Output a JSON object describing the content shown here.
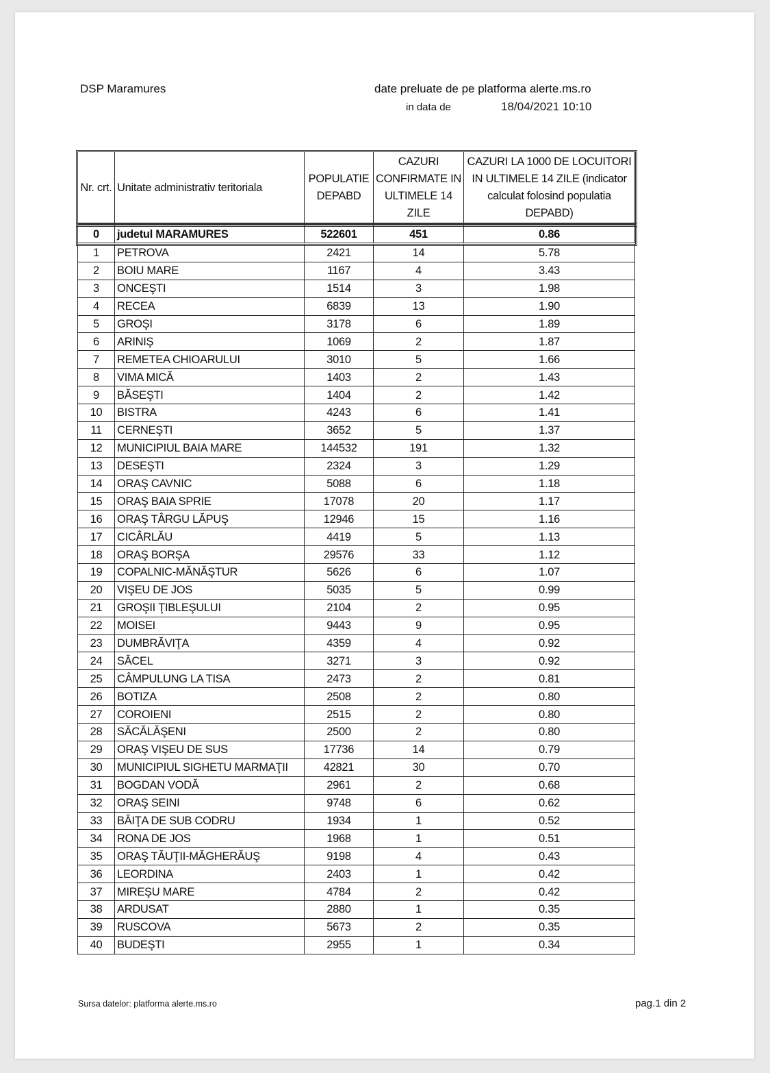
{
  "header": {
    "org": "DSP Maramures",
    "source_line": "date preluate de pe platforma alerte.ms.ro",
    "date_label": "in data de",
    "date_value": "18/04/2021 10:10"
  },
  "table": {
    "columns": [
      "Nr. crt.",
      "Unitate administrativ teritoriala",
      "POPULATIE DEPABD",
      "CAZURI CONFIRMATE IN ULTIMELE 14 ZILE",
      "CAZURI LA 1000 DE LOCUITORI IN ULTIMELE 14 ZILE (indicator calculat folosind populatia DEPABD)"
    ],
    "total": [
      "0",
      "judetul MARAMURES",
      "522601",
      "451",
      "0.86"
    ],
    "rows": [
      [
        "1",
        "PETROVA",
        "2421",
        "14",
        "5.78"
      ],
      [
        "2",
        "BOIU MARE",
        "1167",
        "4",
        "3.43"
      ],
      [
        "3",
        "ONCEŞTI",
        "1514",
        "3",
        "1.98"
      ],
      [
        "4",
        "RECEA",
        "6839",
        "13",
        "1.90"
      ],
      [
        "5",
        "GROŞI",
        "3178",
        "6",
        "1.89"
      ],
      [
        "6",
        "ARINIŞ",
        "1069",
        "2",
        "1.87"
      ],
      [
        "7",
        "REMETEA CHIOARULUI",
        "3010",
        "5",
        "1.66"
      ],
      [
        "8",
        "VIMA MICĂ",
        "1403",
        "2",
        "1.43"
      ],
      [
        "9",
        "BĂSEŞTI",
        "1404",
        "2",
        "1.42"
      ],
      [
        "10",
        "BISTRA",
        "4243",
        "6",
        "1.41"
      ],
      [
        "11",
        "CERNEŞTI",
        "3652",
        "5",
        "1.37"
      ],
      [
        "12",
        "MUNICIPIUL BAIA MARE",
        "144532",
        "191",
        "1.32"
      ],
      [
        "13",
        "DESEŞTI",
        "2324",
        "3",
        "1.29"
      ],
      [
        "14",
        "ORAŞ CAVNIC",
        "5088",
        "6",
        "1.18"
      ],
      [
        "15",
        "ORAŞ BAIA SPRIE",
        "17078",
        "20",
        "1.17"
      ],
      [
        "16",
        "ORAŞ TÂRGU LĂPUŞ",
        "12946",
        "15",
        "1.16"
      ],
      [
        "17",
        "CICÂRLĂU",
        "4419",
        "5",
        "1.13"
      ],
      [
        "18",
        "ORAŞ BORŞA",
        "29576",
        "33",
        "1.12"
      ],
      [
        "19",
        "COPALNIC-MĂNĂŞTUR",
        "5626",
        "6",
        "1.07"
      ],
      [
        "20",
        "VIŞEU DE JOS",
        "5035",
        "5",
        "0.99"
      ],
      [
        "21",
        "GROŞII ŢIBLEŞULUI",
        "2104",
        "2",
        "0.95"
      ],
      [
        "22",
        "MOISEI",
        "9443",
        "9",
        "0.95"
      ],
      [
        "23",
        "DUMBRĂVIŢA",
        "4359",
        "4",
        "0.92"
      ],
      [
        "24",
        "SĂCEL",
        "3271",
        "3",
        "0.92"
      ],
      [
        "25",
        "CÂMPULUNG LA TISA",
        "2473",
        "2",
        "0.81"
      ],
      [
        "26",
        "BOTIZA",
        "2508",
        "2",
        "0.80"
      ],
      [
        "27",
        "COROIENI",
        "2515",
        "2",
        "0.80"
      ],
      [
        "28",
        "SĂCĂLĂŞENI",
        "2500",
        "2",
        "0.80"
      ],
      [
        "29",
        "ORAŞ VIŞEU DE SUS",
        "17736",
        "14",
        "0.79"
      ],
      [
        "30",
        "MUNICIPIUL SIGHETU MARMAŢII",
        "42821",
        "30",
        "0.70"
      ],
      [
        "31",
        "BOGDAN VODĂ",
        "2961",
        "2",
        "0.68"
      ],
      [
        "32",
        "ORAŞ SEINI",
        "9748",
        "6",
        "0.62"
      ],
      [
        "33",
        "BĂIŢA DE SUB CODRU",
        "1934",
        "1",
        "0.52"
      ],
      [
        "34",
        "RONA DE JOS",
        "1968",
        "1",
        "0.51"
      ],
      [
        "35",
        "ORAŞ TĂUŢII-MĂGHERĂUŞ",
        "9198",
        "4",
        "0.43"
      ],
      [
        "36",
        "LEORDINA",
        "2403",
        "1",
        "0.42"
      ],
      [
        "37",
        "MIREŞU MARE",
        "4784",
        "2",
        "0.42"
      ],
      [
        "38",
        "ARDUSAT",
        "2880",
        "1",
        "0.35"
      ],
      [
        "39",
        "RUSCOVA",
        "5673",
        "2",
        "0.35"
      ],
      [
        "40",
        "BUDEŞTI",
        "2955",
        "1",
        "0.34"
      ]
    ]
  },
  "footer": {
    "source": "Sursa datelor:  platforma  alerte.ms.ro",
    "page": "pag.1 din 2"
  }
}
